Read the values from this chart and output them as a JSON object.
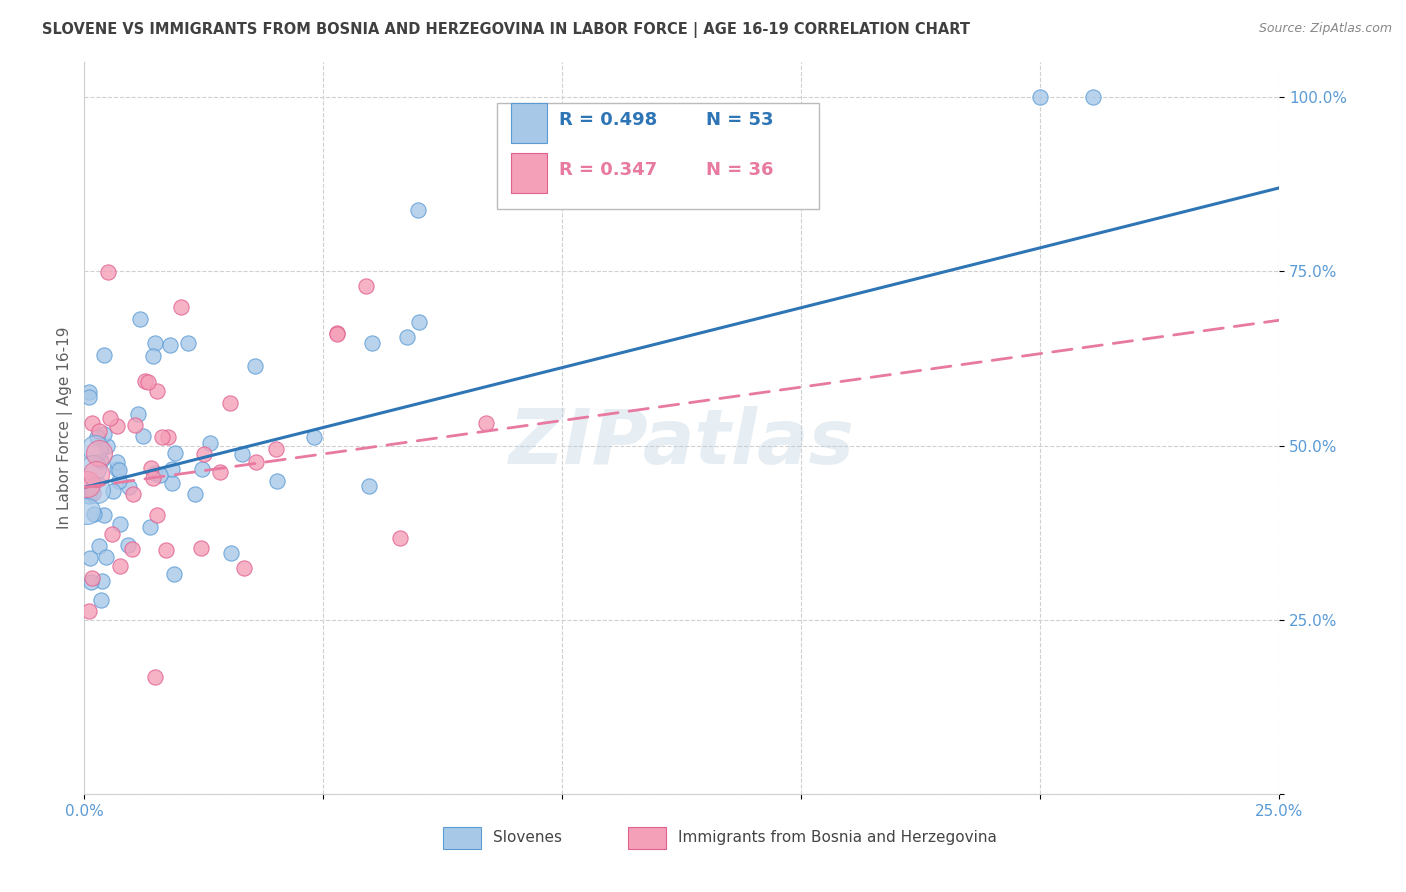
{
  "title": "SLOVENE VS IMMIGRANTS FROM BOSNIA AND HERZEGOVINA IN LABOR FORCE | AGE 16-19 CORRELATION CHART",
  "source": "Source: ZipAtlas.com",
  "ylabel": "In Labor Force | Age 16-19",
  "xlim": [
    0.0,
    0.25
  ],
  "ylim": [
    0.0,
    1.05
  ],
  "ytick_vals": [
    0.0,
    0.25,
    0.5,
    0.75,
    1.0
  ],
  "ytick_labels": [
    "",
    "25.0%",
    "50.0%",
    "75.0%",
    "100.0%"
  ],
  "xtick_vals": [
    0.0,
    0.05,
    0.1,
    0.15,
    0.2,
    0.25
  ],
  "xtick_labels": [
    "0.0%",
    "",
    "",
    "",
    "",
    "25.0%"
  ],
  "slovene_color": "#a8c8e8",
  "immigrant_color": "#f4a0b8",
  "slovene_edge_color": "#5b9bd5",
  "immigrant_edge_color": "#e06090",
  "regression_blue": "#2e75b6",
  "regression_pink": "#e879a0",
  "watermark": "ZIPatlas",
  "legend_r_slovene": "R = 0.498",
  "legend_n_slovene": "N = 53",
  "legend_r_immigrant": "R = 0.347",
  "legend_n_immigrant": "N = 36",
  "tick_color": "#5b9bd5",
  "grid_color": "#d0d0d0",
  "title_color": "#404040",
  "source_color": "#888888",
  "ylabel_color": "#606060"
}
